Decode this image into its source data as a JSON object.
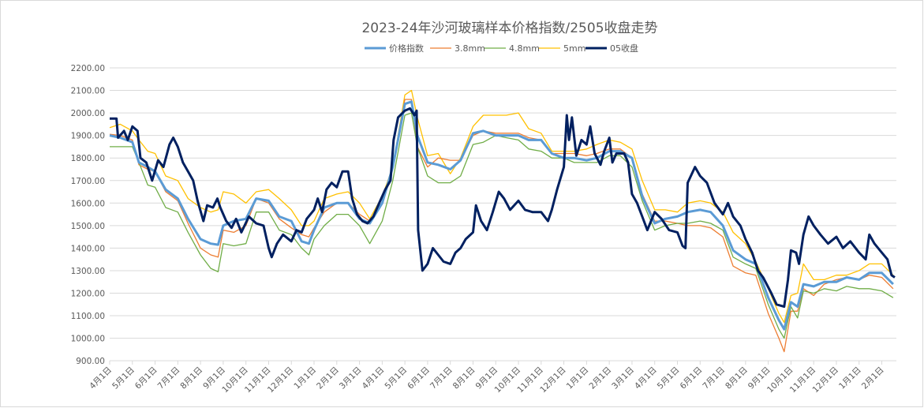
{
  "chart_data": {
    "type": "line",
    "title": "2023-24年沙河玻璃样本价格指数/2505收盘走势",
    "xlabel": "",
    "ylabel": "",
    "ylim": [
      900,
      2200
    ],
    "xlim": [
      "2022-04-01",
      "2025-02-28"
    ],
    "grid": true,
    "legend_position": "top",
    "y_ticks": [
      "2200.00",
      "2100.00",
      "2000.00",
      "1900.00",
      "1800.00",
      "1700.00",
      "1600.00",
      "1500.00",
      "1400.00",
      "1300.00",
      "1200.00",
      "1100.00",
      "1000.00",
      "900.00"
    ],
    "x_ticks": [
      "4月1日",
      "5月1日",
      "6月1日",
      "7月1日",
      "8月1日",
      "9月1日",
      "10月1日",
      "11月1日",
      "12月1日",
      "1月1日",
      "2月1日",
      "3月1日",
      "4月1日",
      "5月1日",
      "6月1日",
      "7月1日",
      "8月1日",
      "9月1日",
      "10月1日",
      "11月1日",
      "12月1日",
      "1月1日",
      "2月1日",
      "3月1日",
      "4月1日",
      "5月1日",
      "6月1日",
      "7月1日",
      "8月1日",
      "9月1日",
      "10月1日",
      "11月1日",
      "12月1日",
      "1月1日",
      "2月1日"
    ],
    "x": [
      "2022-04-01",
      "2022-04-15",
      "2022-05-01",
      "2022-05-10",
      "2022-05-22",
      "2022-06-01",
      "2022-06-15",
      "2022-07-01",
      "2022-07-15",
      "2022-08-01",
      "2022-08-15",
      "2022-08-25",
      "2022-09-01",
      "2022-09-15",
      "2022-10-01",
      "2022-10-15",
      "2022-11-01",
      "2022-11-15",
      "2022-12-01",
      "2022-12-15",
      "2022-12-25",
      "2023-01-01",
      "2023-01-15",
      "2023-02-01",
      "2023-02-15",
      "2023-03-01",
      "2023-03-15",
      "2023-04-01",
      "2023-04-15",
      "2023-05-01",
      "2023-05-10",
      "2023-05-18",
      "2023-06-01",
      "2023-06-15",
      "2023-07-01",
      "2023-07-15",
      "2023-08-01",
      "2023-08-15",
      "2023-09-01",
      "2023-09-15",
      "2023-10-01",
      "2023-10-15",
      "2023-11-01",
      "2023-11-15",
      "2023-12-01",
      "2023-12-15",
      "2024-01-01",
      "2024-01-15",
      "2024-02-01",
      "2024-02-15",
      "2024-03-01",
      "2024-03-15",
      "2024-04-01",
      "2024-04-15",
      "2024-05-01",
      "2024-05-15",
      "2024-06-01",
      "2024-06-15",
      "2024-07-01",
      "2024-07-15",
      "2024-08-01",
      "2024-08-15",
      "2024-09-01",
      "2024-09-15",
      "2024-09-22",
      "2024-10-01",
      "2024-10-10",
      "2024-10-18",
      "2024-11-01",
      "2024-11-15",
      "2024-12-01",
      "2024-12-15",
      "2025-01-01",
      "2025-01-15",
      "2025-02-01",
      "2025-02-15"
    ],
    "series": [
      {
        "name": "价格指数",
        "color": "#5B9BD5",
        "values": [
          1900,
          1890,
          1870,
          1780,
          1760,
          1740,
          1660,
          1620,
          1530,
          1440,
          1420,
          1415,
          1500,
          1520,
          1530,
          1620,
          1610,
          1540,
          1520,
          1430,
          1420,
          1480,
          1580,
          1600,
          1600,
          1530,
          1510,
          1600,
          1760,
          2040,
          2050,
          1900,
          1780,
          1770,
          1750,
          1790,
          1910,
          1920,
          1900,
          1900,
          1900,
          1880,
          1880,
          1820,
          1800,
          1800,
          1790,
          1800,
          1830,
          1830,
          1800,
          1630,
          1510,
          1530,
          1540,
          1560,
          1570,
          1560,
          1500,
          1390,
          1350,
          1330,
          1180,
          1080,
          1040,
          1160,
          1140,
          1240,
          1230,
          1250,
          1250,
          1270,
          1260,
          1290,
          1290,
          1240
        ]
      },
      {
        "name": "3.8mm",
        "color": "#ED7D31",
        "values": [
          1905,
          1900,
          1880,
          1770,
          1750,
          1740,
          1650,
          1610,
          1510,
          1400,
          1370,
          1360,
          1480,
          1470,
          1500,
          1620,
          1600,
          1530,
          1490,
          1460,
          1450,
          1490,
          1560,
          1600,
          1600,
          1550,
          1520,
          1600,
          1760,
          2060,
          2060,
          1850,
          1760,
          1800,
          1790,
          1790,
          1900,
          1920,
          1910,
          1910,
          1910,
          1890,
          1880,
          1820,
          1820,
          1820,
          1810,
          1820,
          1840,
          1840,
          1800,
          1640,
          1520,
          1520,
          1510,
          1500,
          1500,
          1490,
          1450,
          1320,
          1290,
          1280,
          1110,
          1000,
          940,
          1120,
          1120,
          1220,
          1190,
          1240,
          1260,
          1270,
          1260,
          1280,
          1270,
          1220
        ]
      },
      {
        "name": "4.8mm",
        "color": "#70AD47",
        "values": [
          1850,
          1850,
          1850,
          1780,
          1680,
          1670,
          1580,
          1560,
          1470,
          1370,
          1310,
          1295,
          1420,
          1410,
          1420,
          1560,
          1560,
          1480,
          1460,
          1400,
          1370,
          1440,
          1500,
          1550,
          1550,
          1500,
          1420,
          1520,
          1700,
          1990,
          2000,
          1850,
          1720,
          1690,
          1690,
          1720,
          1860,
          1870,
          1900,
          1890,
          1880,
          1840,
          1830,
          1800,
          1800,
          1780,
          1780,
          1780,
          1810,
          1810,
          1760,
          1610,
          1480,
          1500,
          1510,
          1510,
          1520,
          1510,
          1480,
          1360,
          1330,
          1310,
          1150,
          1040,
          1000,
          1140,
          1090,
          1210,
          1200,
          1220,
          1210,
          1230,
          1220,
          1220,
          1210,
          1180
        ]
      },
      {
        "name": "5mm",
        "color": "#FFC000",
        "values": [
          1935,
          1950,
          1920,
          1880,
          1830,
          1820,
          1720,
          1700,
          1620,
          1580,
          1560,
          1570,
          1650,
          1640,
          1600,
          1650,
          1660,
          1620,
          1570,
          1500,
          1500,
          1520,
          1620,
          1640,
          1650,
          1600,
          1530,
          1630,
          1760,
          2080,
          2100,
          1980,
          1810,
          1820,
          1730,
          1800,
          1940,
          1990,
          1990,
          1990,
          2000,
          1930,
          1910,
          1830,
          1830,
          1830,
          1840,
          1860,
          1880,
          1870,
          1840,
          1700,
          1570,
          1570,
          1560,
          1600,
          1610,
          1600,
          1560,
          1470,
          1420,
          1340,
          1220,
          1110,
          1070,
          1190,
          1200,
          1330,
          1260,
          1260,
          1280,
          1280,
          1300,
          1330,
          1330,
          1280
        ]
      }
    ],
    "futures": {
      "name": "05收盘",
      "color": "#002060",
      "points": [
        [
          "2022-04-01",
          1975
        ],
        [
          "2022-04-10",
          1975
        ],
        [
          "2022-04-12",
          1890
        ],
        [
          "2022-04-20",
          1920
        ],
        [
          "2022-04-25",
          1880
        ],
        [
          "2022-05-01",
          1940
        ],
        [
          "2022-05-08",
          1920
        ],
        [
          "2022-05-12",
          1800
        ],
        [
          "2022-05-20",
          1780
        ],
        [
          "2022-05-28",
          1700
        ],
        [
          "2022-06-05",
          1790
        ],
        [
          "2022-06-12",
          1760
        ],
        [
          "2022-06-20",
          1860
        ],
        [
          "2022-06-25",
          1890
        ],
        [
          "2022-07-01",
          1850
        ],
        [
          "2022-07-08",
          1780
        ],
        [
          "2022-07-15",
          1740
        ],
        [
          "2022-07-22",
          1700
        ],
        [
          "2022-07-28",
          1610
        ],
        [
          "2022-08-05",
          1520
        ],
        [
          "2022-08-10",
          1590
        ],
        [
          "2022-08-18",
          1580
        ],
        [
          "2022-08-24",
          1620
        ],
        [
          "2022-08-28",
          1580
        ],
        [
          "2022-09-05",
          1520
        ],
        [
          "2022-09-12",
          1490
        ],
        [
          "2022-09-18",
          1530
        ],
        [
          "2022-09-25",
          1470
        ],
        [
          "2022-10-05",
          1540
        ],
        [
          "2022-10-15",
          1510
        ],
        [
          "2022-10-25",
          1500
        ],
        [
          "2022-11-01",
          1400
        ],
        [
          "2022-11-05",
          1360
        ],
        [
          "2022-11-12",
          1420
        ],
        [
          "2022-11-20",
          1460
        ],
        [
          "2022-12-01",
          1430
        ],
        [
          "2022-12-08",
          1480
        ],
        [
          "2022-12-15",
          1470
        ],
        [
          "2022-12-22",
          1530
        ],
        [
          "2023-01-01",
          1570
        ],
        [
          "2023-01-06",
          1620
        ],
        [
          "2023-01-12",
          1560
        ],
        [
          "2023-01-18",
          1660
        ],
        [
          "2023-01-25",
          1690
        ],
        [
          "2023-02-01",
          1670
        ],
        [
          "2023-02-08",
          1740
        ],
        [
          "2023-02-15",
          1740
        ],
        [
          "2023-02-20",
          1620
        ],
        [
          "2023-02-26",
          1550
        ],
        [
          "2023-03-05",
          1520
        ],
        [
          "2023-03-12",
          1510
        ],
        [
          "2023-03-20",
          1540
        ],
        [
          "2023-03-28",
          1600
        ],
        [
          "2023-04-05",
          1660
        ],
        [
          "2023-04-12",
          1700
        ],
        [
          "2023-04-16",
          1880
        ],
        [
          "2023-04-22",
          1980
        ],
        [
          "2023-05-01",
          2010
        ],
        [
          "2023-05-08",
          2020
        ],
        [
          "2023-05-14",
          1990
        ],
        [
          "2023-05-17",
          2010
        ],
        [
          "2023-05-19",
          1480
        ],
        [
          "2023-05-25",
          1300
        ],
        [
          "2023-06-01",
          1330
        ],
        [
          "2023-06-08",
          1400
        ],
        [
          "2023-06-15",
          1370
        ],
        [
          "2023-06-22",
          1340
        ],
        [
          "2023-07-01",
          1330
        ],
        [
          "2023-07-08",
          1380
        ],
        [
          "2023-07-15",
          1400
        ],
        [
          "2023-07-22",
          1440
        ],
        [
          "2023-08-01",
          1470
        ],
        [
          "2023-08-05",
          1590
        ],
        [
          "2023-08-12",
          1520
        ],
        [
          "2023-08-20",
          1480
        ],
        [
          "2023-08-28",
          1560
        ],
        [
          "2023-09-05",
          1650
        ],
        [
          "2023-09-12",
          1620
        ],
        [
          "2023-09-20",
          1570
        ],
        [
          "2023-10-01",
          1610
        ],
        [
          "2023-10-10",
          1570
        ],
        [
          "2023-10-20",
          1560
        ],
        [
          "2023-11-01",
          1560
        ],
        [
          "2023-11-10",
          1520
        ],
        [
          "2023-11-15",
          1570
        ],
        [
          "2023-11-22",
          1660
        ],
        [
          "2023-12-01",
          1760
        ],
        [
          "2023-12-05",
          1990
        ],
        [
          "2023-12-08",
          1880
        ],
        [
          "2023-12-12",
          1980
        ],
        [
          "2023-12-18",
          1810
        ],
        [
          "2023-12-25",
          1880
        ],
        [
          "2024-01-01",
          1860
        ],
        [
          "2024-01-06",
          1940
        ],
        [
          "2024-01-12",
          1820
        ],
        [
          "2024-01-20",
          1770
        ],
        [
          "2024-01-25",
          1830
        ],
        [
          "2024-02-01",
          1890
        ],
        [
          "2024-02-05",
          1780
        ],
        [
          "2024-02-10",
          1820
        ],
        [
          "2024-02-20",
          1820
        ],
        [
          "2024-02-25",
          1780
        ],
        [
          "2024-03-01",
          1640
        ],
        [
          "2024-03-08",
          1600
        ],
        [
          "2024-03-15",
          1540
        ],
        [
          "2024-03-22",
          1480
        ],
        [
          "2024-04-01",
          1560
        ],
        [
          "2024-04-10",
          1530
        ],
        [
          "2024-04-20",
          1480
        ],
        [
          "2024-05-01",
          1470
        ],
        [
          "2024-05-08",
          1410
        ],
        [
          "2024-05-12",
          1400
        ],
        [
          "2024-05-15",
          1690
        ],
        [
          "2024-05-25",
          1760
        ],
        [
          "2024-06-01",
          1720
        ],
        [
          "2024-06-10",
          1690
        ],
        [
          "2024-06-20",
          1600
        ],
        [
          "2024-07-01",
          1550
        ],
        [
          "2024-07-08",
          1600
        ],
        [
          "2024-07-15",
          1540
        ],
        [
          "2024-07-25",
          1500
        ],
        [
          "2024-08-01",
          1440
        ],
        [
          "2024-08-10",
          1380
        ],
        [
          "2024-08-18",
          1300
        ],
        [
          "2024-08-25",
          1270
        ],
        [
          "2024-09-05",
          1200
        ],
        [
          "2024-09-12",
          1150
        ],
        [
          "2024-09-22",
          1140
        ],
        [
          "2024-09-27",
          1260
        ],
        [
          "2024-10-01",
          1390
        ],
        [
          "2024-10-08",
          1380
        ],
        [
          "2024-10-12",
          1330
        ],
        [
          "2024-10-18",
          1460
        ],
        [
          "2024-10-25",
          1540
        ],
        [
          "2024-11-01",
          1500
        ],
        [
          "2024-11-10",
          1460
        ],
        [
          "2024-11-20",
          1420
        ],
        [
          "2024-12-01",
          1450
        ],
        [
          "2024-12-10",
          1400
        ],
        [
          "2024-12-20",
          1430
        ],
        [
          "2025-01-01",
          1380
        ],
        [
          "2025-01-10",
          1350
        ],
        [
          "2025-01-15",
          1460
        ],
        [
          "2025-01-22",
          1420
        ],
        [
          "2025-02-01",
          1380
        ],
        [
          "2025-02-08",
          1350
        ],
        [
          "2025-02-13",
          1280
        ],
        [
          "2025-02-17",
          1270
        ]
      ]
    }
  }
}
